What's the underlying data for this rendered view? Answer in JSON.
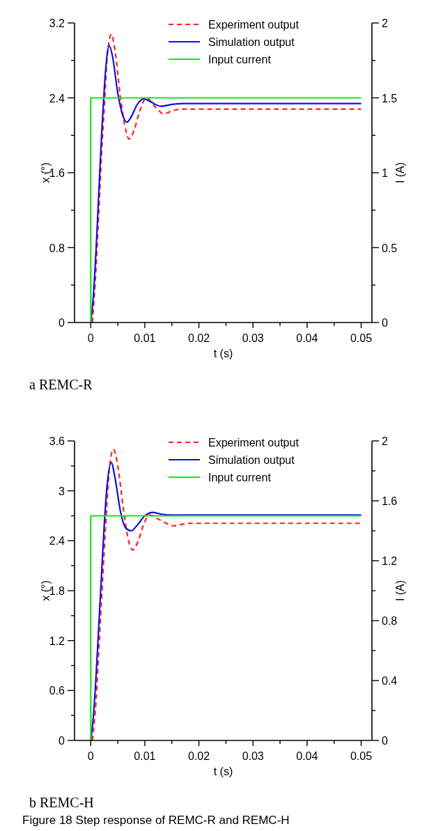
{
  "chart_data": [
    {
      "type": "line",
      "xlabel": "t (s)",
      "ylabel": "x (°)",
      "y2label": "I (A)",
      "xlim": [
        -0.003,
        0.052
      ],
      "xticks": [
        0,
        {
          "value": 0.005,
          "label": null
        },
        0.01,
        {
          "value": 0.015,
          "label": null
        },
        0.02,
        {
          "value": 0.025,
          "label": null
        },
        0.03,
        {
          "value": 0.035,
          "label": null
        },
        0.04,
        {
          "value": 0.045,
          "label": null
        },
        0.05
      ],
      "ylim": [
        0,
        3.2
      ],
      "yticks": [
        0,
        {
          "value": 0.4,
          "label": null
        },
        0.8,
        {
          "value": 1.2,
          "label": null
        },
        1.6,
        {
          "value": 2,
          "label": null
        },
        2.4,
        {
          "value": 2.8,
          "label": null
        },
        3.2
      ],
      "y2lim": [
        0,
        2
      ],
      "y2ticks": [
        0,
        {
          "value": 0.25,
          "label": null
        },
        0.5,
        {
          "value": 0.75,
          "label": null
        },
        1,
        {
          "value": 1.25,
          "label": null
        },
        1.5,
        {
          "value": 1.75,
          "label": null
        },
        2
      ],
      "legend": "top right",
      "grid": false,
      "annotations": [
        "a REMC-R"
      ],
      "series": [
        {
          "name": "Experiment output",
          "color": "#ff2020",
          "line_style": "dashed",
          "x": [
            0.0003,
            0.001,
            0.0015,
            0.002,
            0.0026,
            0.003,
            0.0038,
            0.0045,
            0.0055,
            0.0065,
            0.0071,
            0.008,
            0.009,
            0.0103,
            0.012,
            0.0135,
            0.015,
            0.017,
            0.02,
            0.03,
            0.04,
            0.05
          ],
          "values": [
            0,
            0.6,
            1.2,
            1.8,
            2.4,
            2.8,
            3.08,
            2.9,
            2.4,
            2.05,
            1.96,
            2.05,
            2.25,
            2.4,
            2.3,
            2.23,
            2.26,
            2.28,
            2.28,
            2.28,
            2.28,
            2.28
          ]
        },
        {
          "name": "Simulation output",
          "color": "#1010e0",
          "line_style": "solid",
          "x": [
            0,
            0.0005,
            0.001,
            0.0015,
            0.002,
            0.0025,
            0.003,
            0.0034,
            0.004,
            0.005,
            0.006,
            0.0067,
            0.0075,
            0.0085,
            0.0098,
            0.011,
            0.013,
            0.015,
            0.017,
            0.02,
            0.03,
            0.04,
            0.05
          ],
          "values": [
            0,
            0.3,
            0.8,
            1.4,
            2,
            2.5,
            2.85,
            2.96,
            2.85,
            2.45,
            2.2,
            2.14,
            2.2,
            2.32,
            2.39,
            2.36,
            2.31,
            2.33,
            2.34,
            2.34,
            2.34,
            2.34,
            2.34
          ]
        },
        {
          "name": "Input current",
          "color": "#20e020",
          "line_style": "solid",
          "axis": "y2",
          "type": "step",
          "x": [
            0,
            0,
            0.05
          ],
          "values": [
            0,
            1.5,
            1.5
          ]
        }
      ]
    },
    {
      "type": "line",
      "xlabel": "t (s)",
      "ylabel": "x (°)",
      "y2label": "I (A)",
      "xlim": [
        -0.003,
        0.052
      ],
      "xticks": [
        0,
        {
          "value": 0.005,
          "label": null
        },
        0.01,
        {
          "value": 0.015,
          "label": null
        },
        0.02,
        {
          "value": 0.025,
          "label": null
        },
        0.03,
        {
          "value": 0.035,
          "label": null
        },
        0.04,
        {
          "value": 0.045,
          "label": null
        },
        0.05
      ],
      "ylim": [
        0,
        3.6
      ],
      "yticks": [
        0,
        {
          "value": 0.3,
          "label": null
        },
        0.6,
        {
          "value": 0.9,
          "label": null
        },
        1.2,
        {
          "value": 1.5,
          "label": null
        },
        1.8,
        {
          "value": 2.1,
          "label": null
        },
        2.4,
        {
          "value": 2.7,
          "label": null
        },
        3,
        {
          "value": 3.3,
          "label": null
        },
        3.6
      ],
      "y2lim": [
        0,
        2
      ],
      "y2ticks": [
        0,
        {
          "value": 0.2,
          "label": null
        },
        0.4,
        {
          "value": 0.6,
          "label": null
        },
        0.8,
        {
          "value": 1,
          "label": null
        },
        1.2,
        {
          "value": 1.4,
          "label": null
        },
        1.6,
        {
          "value": 1.8,
          "label": null
        },
        2
      ],
      "legend": "top right",
      "grid": false,
      "annotations": [
        "b REMC-H",
        "Figure 18 Step response of REMC-R and REMC-H"
      ],
      "series": [
        {
          "name": "Experiment output",
          "color": "#ff2020",
          "line_style": "dashed",
          "x": [
            0.0003,
            0.001,
            0.0015,
            0.002,
            0.0025,
            0.003,
            0.0035,
            0.0042,
            0.005,
            0.006,
            0.007,
            0.0078,
            0.0088,
            0.0098,
            0.0109,
            0.0125,
            0.0155,
            0.018,
            0.02,
            0.03,
            0.04,
            0.05
          ],
          "values": [
            0,
            0.5,
            1.1,
            1.7,
            2.3,
            2.85,
            3.3,
            3.5,
            3.3,
            2.8,
            2.4,
            2.29,
            2.4,
            2.6,
            2.71,
            2.66,
            2.58,
            2.61,
            2.61,
            2.61,
            2.61,
            2.61
          ]
        },
        {
          "name": "Simulation output",
          "color": "#1010e0",
          "line_style": "solid",
          "x": [
            0,
            0.0005,
            0.001,
            0.0015,
            0.002,
            0.0025,
            0.003,
            0.0038,
            0.0045,
            0.0055,
            0.0065,
            0.0075,
            0.0085,
            0.01,
            0.0115,
            0.013,
            0.015,
            0.02,
            0.03,
            0.04,
            0.05
          ],
          "values": [
            0,
            0.3,
            0.8,
            1.4,
            2,
            2.6,
            3.05,
            3.34,
            3.15,
            2.75,
            2.55,
            2.52,
            2.58,
            2.7,
            2.74,
            2.72,
            2.71,
            2.71,
            2.71,
            2.71,
            2.71
          ]
        },
        {
          "name": "Input current",
          "color": "#20e020",
          "line_style": "solid",
          "axis": "y2",
          "type": "step",
          "x": [
            0,
            0,
            0.05
          ],
          "values": [
            0,
            1.5,
            1.5
          ]
        }
      ]
    }
  ]
}
